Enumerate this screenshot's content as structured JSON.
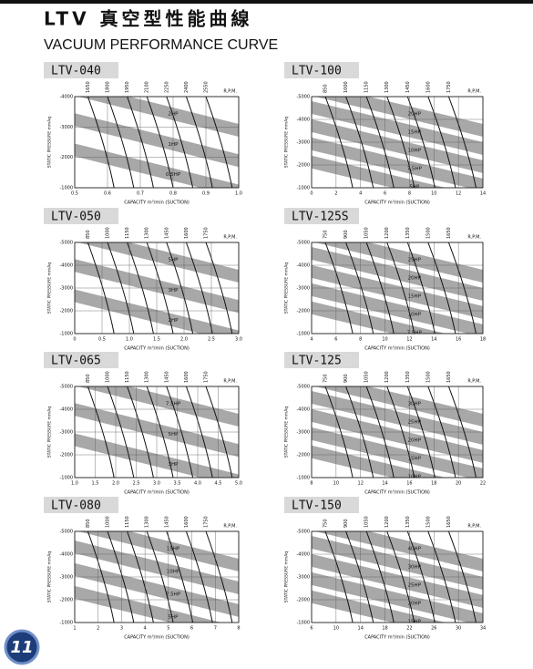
{
  "header": {
    "title": "LTV 真空型性能曲線",
    "subtitle": "VACUUM PERFORMANCE CURVE",
    "page": "11"
  },
  "labels": {
    "rpm": "R.P.M.",
    "y": "STATIC PRESSURE mmAq",
    "x": "CAPACITY m³/min (SUCTION)"
  },
  "charts": [
    {
      "model": "LTV-040",
      "rpm": [
        "1650",
        "1800",
        "1950",
        "2100",
        "2250",
        "2400",
        "2550"
      ],
      "yticks": [
        "-4000",
        "-3000",
        "-2000",
        "-1000"
      ],
      "xticks": [
        "0.5",
        "0.6",
        "0.7",
        "0.8",
        "0.9",
        "1.0"
      ],
      "hp": [
        "2HP",
        "1HP",
        "0.5HP"
      ]
    },
    {
      "model": "LTV-100",
      "rpm": [
        "850",
        "1000",
        "1150",
        "1300",
        "1450",
        "1600",
        "1750"
      ],
      "yticks": [
        "-5000",
        "-4000",
        "-3000",
        "-2000",
        "-1000"
      ],
      "xticks": [
        "0",
        "2",
        "4",
        "6",
        "8",
        "10",
        "12",
        "14"
      ],
      "hp": [
        "20HP",
        "15HP",
        "10HP",
        "7.5HP",
        "5HP"
      ]
    },
    {
      "model": "LTV-050",
      "rpm": [
        "850",
        "1000",
        "1150",
        "1300",
        "1450",
        "1600",
        "1750"
      ],
      "yticks": [
        "-5000",
        "-4000",
        "-3000",
        "-2000",
        "-1000"
      ],
      "xticks": [
        "0",
        "0.5",
        "1.0",
        "1.5",
        "2.0",
        "2.5",
        "3.0"
      ],
      "hp": [
        "5HP",
        "3HP",
        "2HP"
      ]
    },
    {
      "model": "LTV-125S",
      "rpm": [
        "750",
        "900",
        "1050",
        "1200",
        "1350",
        "1500",
        "1650"
      ],
      "yticks": [
        "-5000",
        "-4000",
        "-3000",
        "-2000",
        "-1000"
      ],
      "xticks": [
        "4",
        "6",
        "8",
        "10",
        "12",
        "14",
        "16",
        "18"
      ],
      "hp": [
        "25HP",
        "20HP",
        "15HP",
        "10HP",
        "7.5HP"
      ]
    },
    {
      "model": "LTV-065",
      "rpm": [
        "850",
        "1000",
        "1150",
        "1300",
        "1450",
        "1600",
        "1750"
      ],
      "yticks": [
        "-5000",
        "-4000",
        "-3000",
        "-2000",
        "-1000"
      ],
      "xticks": [
        "1.0",
        "1.5",
        "2.0",
        "2.5",
        "3.0",
        "3.5",
        "4.0",
        "4.5",
        "5.0"
      ],
      "hp": [
        "7.5HP",
        "5HP",
        "3HP"
      ]
    },
    {
      "model": "LTV-125",
      "rpm": [
        "750",
        "900",
        "1050",
        "1200",
        "1350",
        "1500",
        "1650"
      ],
      "yticks": [
        "-5000",
        "-4000",
        "-3000",
        "-2000",
        "-1000"
      ],
      "xticks": [
        "8",
        "10",
        "12",
        "14",
        "16",
        "18",
        "20",
        "22"
      ],
      "hp": [
        "30HP",
        "25HP",
        "20HP",
        "15HP",
        "10HP"
      ]
    },
    {
      "model": "LTV-080",
      "rpm": [
        "850",
        "1000",
        "1150",
        "1300",
        "1450",
        "1600",
        "1750"
      ],
      "yticks": [
        "-5000",
        "-4000",
        "-3000",
        "-2000",
        "-1000"
      ],
      "xticks": [
        "1",
        "2",
        "3",
        "4",
        "5",
        "6",
        "7",
        "8"
      ],
      "hp": [
        "15HP",
        "10HP",
        "7.5HP",
        "5HP"
      ]
    },
    {
      "model": "LTV-150",
      "rpm": [
        "750",
        "900",
        "1050",
        "1200",
        "1350",
        "1500",
        "1650"
      ],
      "yticks": [
        "-5000",
        "-4000",
        "-3000",
        "-2000",
        "-1000"
      ],
      "xticks": [
        "6",
        "10",
        "14",
        "18",
        "22",
        "26",
        "30",
        "34"
      ],
      "hp": [
        "40HP",
        "30HP",
        "25HP",
        "20HP",
        "15HP"
      ]
    }
  ]
}
